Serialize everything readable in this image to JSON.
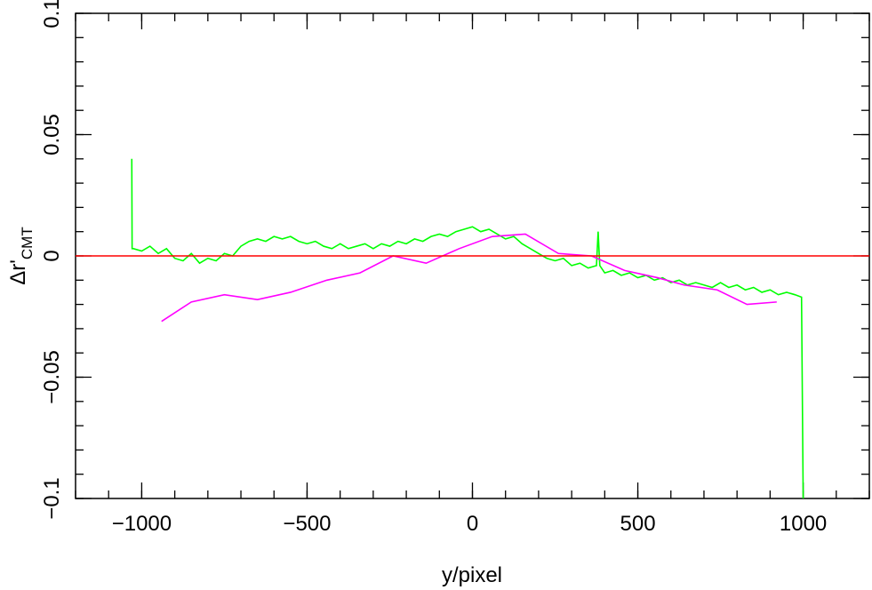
{
  "chart_data": {
    "type": "line",
    "xlabel": "y/pixel",
    "ylabel": "Δr'",
    "ylabel_sub": "CMT",
    "xlim": [
      -1200,
      1200
    ],
    "ylim": [
      -0.1,
      0.1
    ],
    "xticks": [
      {
        "value": -1000,
        "label": "−1000"
      },
      {
        "value": -500,
        "label": "−500"
      },
      0,
      500,
      1000
    ],
    "yticks": [
      {
        "value": -0.1,
        "label": "−0.1"
      },
      {
        "value": -0.05,
        "label": "−0.05"
      },
      0,
      0.05,
      0.1
    ],
    "xminorticks": [
      -1200,
      -1100,
      -1000,
      -900,
      -800,
      -700,
      -600,
      -500,
      -400,
      -300,
      -200,
      -100,
      0,
      100,
      200,
      300,
      400,
      500,
      600,
      700,
      800,
      900,
      1000,
      1100,
      1200
    ],
    "yminorticks": [
      -0.1,
      -0.09,
      -0.08,
      -0.07,
      -0.06,
      -0.05,
      -0.04,
      -0.03,
      -0.02,
      -0.01,
      0,
      0.01,
      0.02,
      0.03,
      0.04,
      0.05,
      0.06,
      0.07,
      0.08,
      0.09,
      0.1
    ],
    "hline": {
      "value": 0,
      "color": "#ff0000"
    },
    "series": [
      {
        "color": "#00ff00",
        "x": [
          -1030,
          -1029,
          -1025,
          -1000,
          -975,
          -950,
          -925,
          -900,
          -875,
          -850,
          -825,
          -800,
          -775,
          -750,
          -725,
          -700,
          -675,
          -650,
          -625,
          -600,
          -575,
          -550,
          -525,
          -500,
          -475,
          -450,
          -425,
          -400,
          -375,
          -350,
          -325,
          -300,
          -275,
          -250,
          -225,
          -200,
          -175,
          -150,
          -125,
          -100,
          -75,
          -50,
          -25,
          0,
          25,
          50,
          75,
          100,
          125,
          150,
          175,
          200,
          225,
          250,
          275,
          300,
          325,
          350,
          375,
          380,
          385,
          400,
          425,
          450,
          475,
          500,
          525,
          550,
          575,
          600,
          625,
          650,
          675,
          700,
          725,
          750,
          775,
          800,
          825,
          850,
          875,
          900,
          925,
          950,
          975,
          995,
          1000
        ],
        "values": [
          0.04,
          0.003,
          0.003,
          0.002,
          0.004,
          0.001,
          0.003,
          -0.001,
          -0.002,
          0.001,
          -0.003,
          -0.001,
          -0.002,
          0.001,
          0.0,
          0.004,
          0.006,
          0.007,
          0.006,
          0.008,
          0.007,
          0.008,
          0.006,
          0.005,
          0.006,
          0.004,
          0.003,
          0.005,
          0.003,
          0.004,
          0.005,
          0.003,
          0.005,
          0.004,
          0.006,
          0.005,
          0.007,
          0.006,
          0.008,
          0.009,
          0.008,
          0.01,
          0.011,
          0.012,
          0.01,
          0.011,
          0.009,
          0.007,
          0.008,
          0.005,
          0.003,
          0.001,
          -0.001,
          -0.002,
          -0.001,
          -0.004,
          -0.003,
          -0.005,
          -0.004,
          0.01,
          -0.004,
          -0.007,
          -0.006,
          -0.008,
          -0.007,
          -0.009,
          -0.008,
          -0.01,
          -0.009,
          -0.011,
          -0.01,
          -0.012,
          -0.011,
          -0.012,
          -0.013,
          -0.011,
          -0.013,
          -0.012,
          -0.014,
          -0.013,
          -0.015,
          -0.014,
          -0.016,
          -0.015,
          -0.016,
          -0.017,
          -0.1
        ]
      },
      {
        "color": "#ff00ff",
        "x": [
          -940,
          -850,
          -750,
          -650,
          -550,
          -440,
          -340,
          -240,
          -140,
          -40,
          60,
          160,
          260,
          360,
          460,
          560,
          640,
          740,
          830,
          920
        ],
        "values": [
          -0.027,
          -0.019,
          -0.016,
          -0.018,
          -0.015,
          -0.01,
          -0.007,
          0.0,
          -0.003,
          0.003,
          0.008,
          0.009,
          0.001,
          0.0,
          -0.006,
          -0.009,
          -0.012,
          -0.014,
          -0.02,
          -0.019
        ]
      }
    ]
  }
}
